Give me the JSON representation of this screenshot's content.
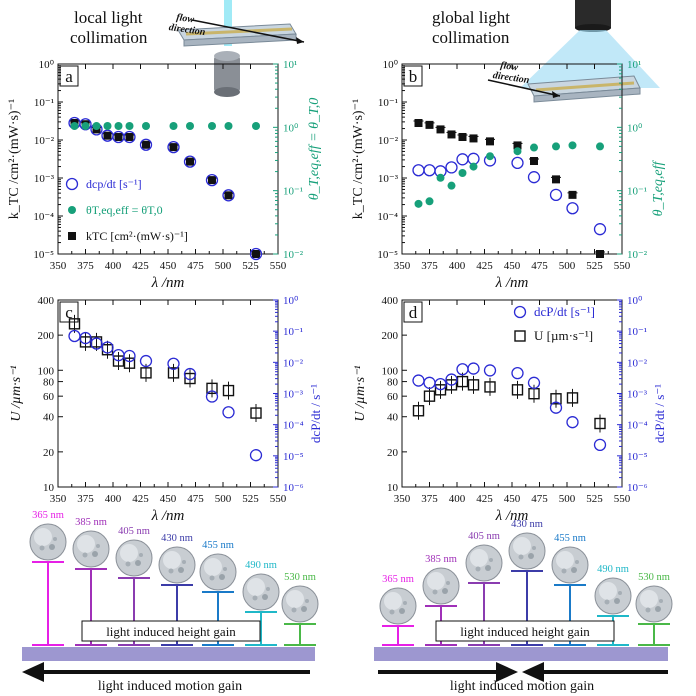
{
  "headers": {
    "left_line1": "local light",
    "left_line2": "collimation",
    "right_line1": "global light",
    "right_line2": "collimation",
    "flow_line1": "flow",
    "flow_line2": "direction"
  },
  "colors": {
    "black": "#111111",
    "blue": "#2b2bd4",
    "green": "#17a07a",
    "axis_blue": "#2b2bd4",
    "axis_green": "#17a07a",
    "ground": "#9d97d0",
    "nm365": "#e620e6",
    "nm385": "#a030b8",
    "nm405": "#8a3cb0",
    "nm430": "#3c3ca8",
    "nm455": "#1a7ac8",
    "nm490": "#20b8c8",
    "nm530": "#4ab848"
  },
  "bottom": {
    "left_labels": [
      "365 nm",
      "385 nm",
      "405 nm",
      "430 nm",
      "455 nm",
      "490 nm",
      "530 nm"
    ],
    "right_labels": [
      "365 nm",
      "385 nm",
      "405 nm",
      "430 nm",
      "455 nm",
      "490 nm",
      "530 nm"
    ],
    "height_gain": "light induced height gain",
    "motion_gain": "light induced motion gain"
  },
  "chart_data": [
    {
      "id": "a",
      "type": "scatter",
      "xlabel": "λ /nm",
      "ylabel": "k_TC /cm²·(mW·s)⁻¹",
      "y2label": "θ_T,eq,eff = θ_T,0",
      "xlim": [
        350,
        550
      ],
      "ylim": [
        1e-05,
        1
      ],
      "y2lim": [
        0.01,
        10
      ],
      "xticks": [
        350,
        375,
        400,
        425,
        450,
        475,
        500,
        525,
        550
      ],
      "ytick_labels": [
        "10⁻⁵",
        "10⁻⁴",
        "10⁻³",
        "10⁻²",
        "10⁻¹",
        "10⁰"
      ],
      "y2tick_labels": [
        "10⁻²",
        "10⁻¹",
        "10⁰",
        "10¹"
      ],
      "legend": [
        {
          "label": "dcp/dt [s⁻¹]",
          "marker": "open-circle"
        },
        {
          "label": "θT,eq,eff = θT,0",
          "marker": "filled-circle"
        },
        {
          "label": "kTC [cm²·(mW·s)⁻¹]",
          "marker": "filled-square"
        }
      ],
      "x": [
        365,
        375,
        385,
        395,
        405,
        415,
        430,
        455,
        470,
        490,
        505,
        530
      ],
      "series": [
        {
          "name": "kTC",
          "axis": "left",
          "marker": "square",
          "values": [
            0.028,
            0.026,
            0.019,
            0.013,
            0.012,
            0.012,
            0.0075,
            0.0065,
            0.0027,
            0.00088,
            0.00035,
            1e-05
          ]
        },
        {
          "name": "dcp/dt",
          "axis": "left",
          "marker": "open-circle",
          "values": [
            0.028,
            0.026,
            0.019,
            0.013,
            0.012,
            0.012,
            0.0075,
            0.0065,
            0.0027,
            0.00088,
            0.00035,
            1e-05
          ]
        },
        {
          "name": "θ",
          "axis": "right",
          "marker": "filled-circle",
          "values": [
            1.05,
            1.05,
            1.05,
            1.05,
            1.05,
            1.05,
            1.05,
            1.05,
            1.05,
            1.05,
            1.05,
            1.05
          ]
        }
      ]
    },
    {
      "id": "b",
      "type": "scatter",
      "xlabel": "λ /nm",
      "ylabel": "k_TC /cm²·(mW·s)⁻¹",
      "y2label": "θ_T,eq,eff",
      "xlim": [
        350,
        550
      ],
      "ylim": [
        1e-05,
        1
      ],
      "y2lim": [
        0.01,
        10
      ],
      "xticks": [
        350,
        375,
        400,
        425,
        450,
        475,
        500,
        525,
        550
      ],
      "ytick_labels": [
        "10⁻⁵",
        "10⁻⁴",
        "10⁻³",
        "10⁻²",
        "10⁻¹",
        "10⁰"
      ],
      "y2tick_labels": [
        "10⁻²",
        "10⁻¹",
        "10⁰",
        "10¹"
      ],
      "x": [
        365,
        375,
        385,
        395,
        405,
        415,
        430,
        455,
        470,
        490,
        505,
        530
      ],
      "series": [
        {
          "name": "kTC",
          "axis": "left",
          "marker": "square",
          "values": [
            0.028,
            0.025,
            0.019,
            0.014,
            0.012,
            0.011,
            0.0092,
            0.0072,
            0.0028,
            0.00092,
            0.00036,
            1e-05
          ]
        },
        {
          "name": "dcp/dt",
          "axis": "left",
          "marker": "open-circle",
          "values": [
            0.0016,
            0.0016,
            0.0015,
            0.0019,
            0.0031,
            0.0032,
            0.0029,
            0.0025,
            0.00105,
            0.00036,
            0.00016,
            4.5e-05
          ]
        },
        {
          "name": "θ",
          "axis": "right",
          "marker": "filled-circle",
          "values": [
            0.062,
            0.068,
            0.16,
            0.12,
            0.19,
            0.24,
            0.35,
            0.42,
            0.48,
            0.5,
            0.52,
            0.5
          ]
        }
      ]
    },
    {
      "id": "c",
      "type": "scatter",
      "xlabel": "λ /nm",
      "ylabel": "U /µm·s⁻¹",
      "y2label": "dcP/dt / s⁻¹",
      "xlim": [
        350,
        550
      ],
      "ylim": [
        10,
        400
      ],
      "y2lim": [
        1e-06,
        1
      ],
      "xticks": [
        350,
        375,
        400,
        425,
        450,
        475,
        500,
        525,
        550
      ],
      "yticks": [
        10,
        20,
        40,
        60,
        80,
        100,
        200,
        400
      ],
      "y2tick_labels": [
        "10⁻⁶",
        "10⁻⁵",
        "10⁻⁴",
        "10⁻³",
        "10⁻²",
        "10⁻¹",
        "10⁰"
      ],
      "x": [
        365,
        375,
        385,
        395,
        405,
        415,
        430,
        455,
        470,
        490,
        505,
        530
      ],
      "series": [
        {
          "name": "U",
          "axis": "left",
          "marker": "open-square",
          "values": [
            250,
            175,
            175,
            150,
            120,
            115,
            95,
            95,
            85,
            70,
            67,
            43
          ]
        },
        {
          "name": "dcp/dt",
          "axis": "right",
          "marker": "open-circle",
          "values": [
            0.07,
            0.06,
            0.04,
            0.03,
            0.017,
            0.016,
            0.011,
            0.009,
            0.0042,
            0.0008,
            0.00025,
            1.05e-05
          ]
        }
      ]
    },
    {
      "id": "d",
      "type": "scatter",
      "xlabel": "λ /nm",
      "ylabel": "U /µm·s⁻¹",
      "y2label": "dcP/dt / s⁻¹",
      "xlim": [
        350,
        550
      ],
      "ylim": [
        10,
        400
      ],
      "y2lim": [
        1e-06,
        1
      ],
      "xticks": [
        350,
        375,
        400,
        425,
        450,
        475,
        500,
        525,
        550
      ],
      "yticks": [
        10,
        20,
        40,
        60,
        80,
        100,
        200,
        400
      ],
      "y2tick_labels": [
        "10⁻⁶",
        "10⁻⁵",
        "10⁻⁴",
        "10⁻³",
        "10⁻²",
        "10⁻¹",
        "10⁰"
      ],
      "legend": [
        {
          "label": "dcP/dt [s⁻¹]",
          "marker": "open-circle"
        },
        {
          "label": "U [µm·s⁻¹]",
          "marker": "open-square"
        }
      ],
      "x": [
        365,
        375,
        385,
        395,
        405,
        415,
        430,
        455,
        470,
        490,
        505,
        530
      ],
      "series": [
        {
          "name": "U",
          "axis": "left",
          "marker": "open-square",
          "values": [
            45,
            60,
            68,
            75,
            80,
            75,
            72,
            68,
            63,
            57,
            58,
            35
          ]
        },
        {
          "name": "dcp/dt",
          "axis": "right",
          "marker": "open-circle",
          "values": [
            0.0026,
            0.0022,
            0.002,
            0.0028,
            0.006,
            0.0063,
            0.0055,
            0.0045,
            0.0022,
            0.00035,
            0.00012,
            2.25e-05
          ]
        }
      ]
    }
  ]
}
